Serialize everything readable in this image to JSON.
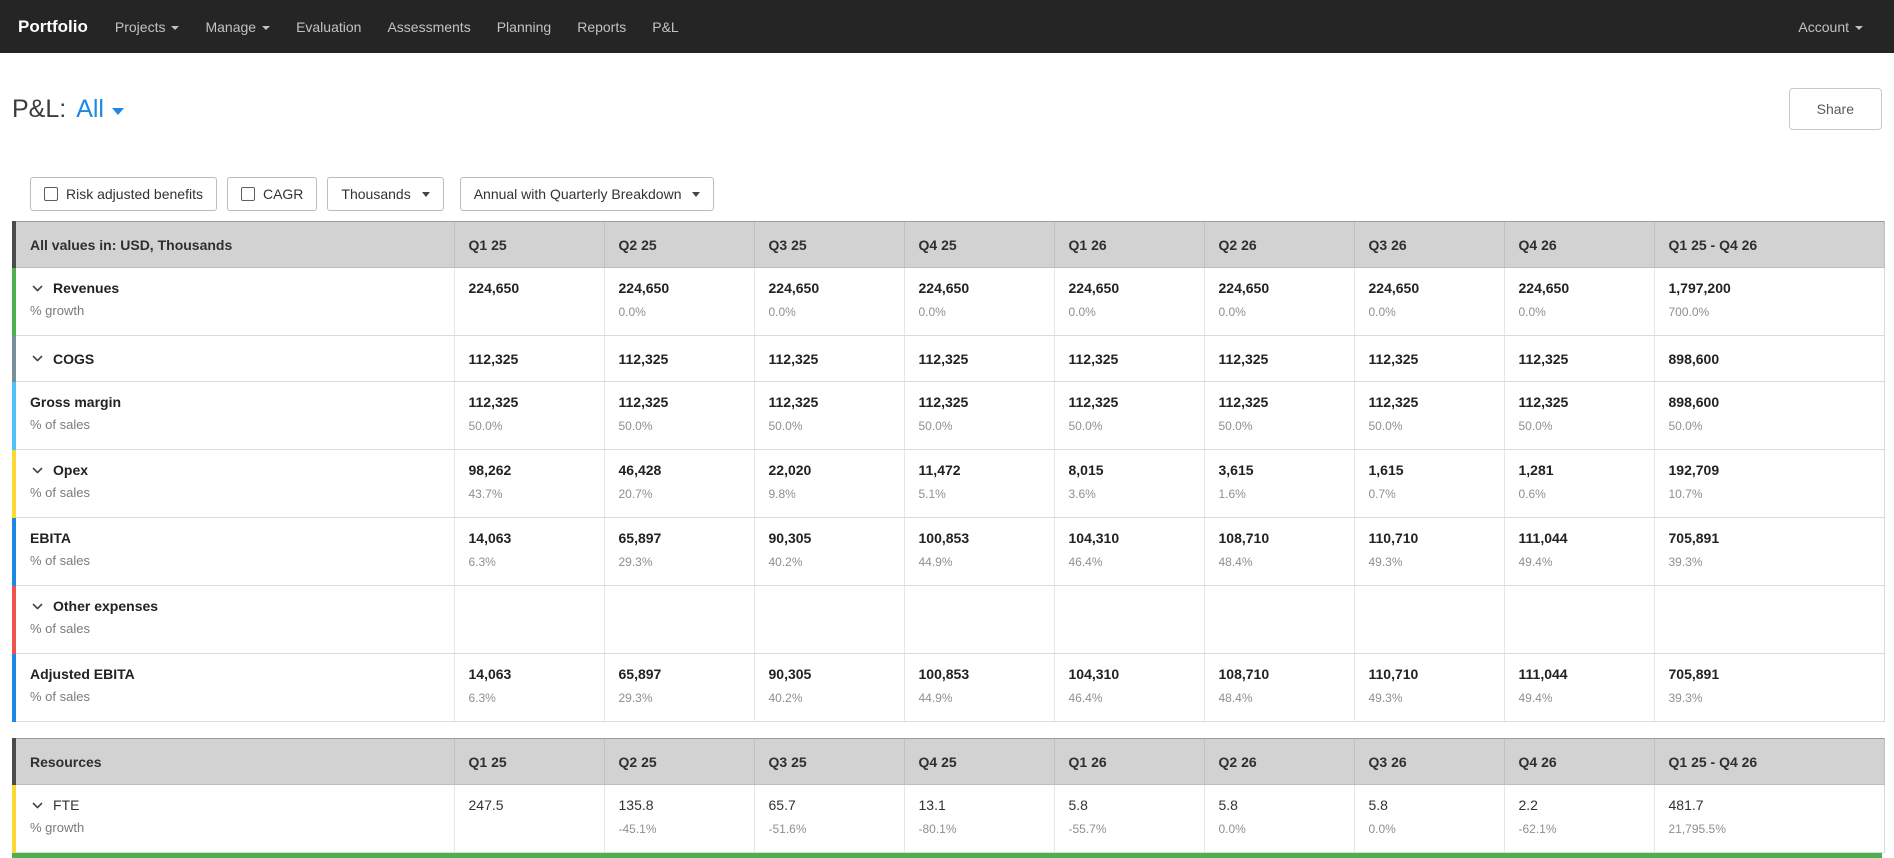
{
  "navbar": {
    "brand": "Portfolio",
    "items": [
      {
        "label": "Projects",
        "caret": true
      },
      {
        "label": "Manage",
        "caret": true
      },
      {
        "label": "Evaluation",
        "caret": false
      },
      {
        "label": "Assessments",
        "caret": false
      },
      {
        "label": "Planning",
        "caret": false
      },
      {
        "label": "Reports",
        "caret": false
      },
      {
        "label": "P&L",
        "caret": false
      }
    ],
    "account_label": "Account"
  },
  "page_header": {
    "title_prefix": "P&L:",
    "scope_selector": "All",
    "share_button": "Share"
  },
  "toolbar": {
    "risk_checkbox_label": "Risk adjusted benefits",
    "cagr_checkbox_label": "CAGR",
    "units_dropdown": "Thousands",
    "period_dropdown": "Annual with Quarterly Breakdown"
  },
  "columns": [
    "Q1 25",
    "Q2 25",
    "Q3 25",
    "Q4 25",
    "Q1 26",
    "Q2 26",
    "Q3 26",
    "Q4 26",
    "Q1 25 - Q4 26"
  ],
  "pnl_table": {
    "corner_label": "All values in: USD, Thousands",
    "rows": [
      {
        "label": "Revenues",
        "sublabel": "% growth",
        "chevron": true,
        "accent": "#4caf50",
        "bold": true,
        "values": [
          "224,650",
          "224,650",
          "224,650",
          "224,650",
          "224,650",
          "224,650",
          "224,650",
          "224,650",
          "1,797,200"
        ],
        "subvalues": [
          "",
          "0.0%",
          "0.0%",
          "0.0%",
          "0.0%",
          "0.0%",
          "0.0%",
          "0.0%",
          "700.0%"
        ]
      },
      {
        "label": "COGS",
        "sublabel": "",
        "chevron": true,
        "accent": "#78909c",
        "bold": true,
        "values": [
          "112,325",
          "112,325",
          "112,325",
          "112,325",
          "112,325",
          "112,325",
          "112,325",
          "112,325",
          "898,600"
        ],
        "subvalues": [
          "",
          "",
          "",
          "",
          "",
          "",
          "",
          "",
          ""
        ]
      },
      {
        "label": "Gross margin",
        "sublabel": "% of sales",
        "chevron": false,
        "accent": "#4fc3f7",
        "bold": true,
        "values": [
          "112,325",
          "112,325",
          "112,325",
          "112,325",
          "112,325",
          "112,325",
          "112,325",
          "112,325",
          "898,600"
        ],
        "subvalues": [
          "50.0%",
          "50.0%",
          "50.0%",
          "50.0%",
          "50.0%",
          "50.0%",
          "50.0%",
          "50.0%",
          "50.0%"
        ]
      },
      {
        "label": "Opex",
        "sublabel": "% of sales",
        "chevron": true,
        "accent": "#fdd835",
        "bold": true,
        "values": [
          "98,262",
          "46,428",
          "22,020",
          "11,472",
          "8,015",
          "3,615",
          "1,615",
          "1,281",
          "192,709"
        ],
        "subvalues": [
          "43.7%",
          "20.7%",
          "9.8%",
          "5.1%",
          "3.6%",
          "1.6%",
          "0.7%",
          "0.6%",
          "10.7%"
        ]
      },
      {
        "label": "EBITA",
        "sublabel": "% of sales",
        "chevron": false,
        "accent": "#1e88e5",
        "bold": true,
        "values": [
          "14,063",
          "65,897",
          "90,305",
          "100,853",
          "104,310",
          "108,710",
          "110,710",
          "111,044",
          "705,891"
        ],
        "subvalues": [
          "6.3%",
          "29.3%",
          "40.2%",
          "44.9%",
          "46.4%",
          "48.4%",
          "49.3%",
          "49.4%",
          "39.3%"
        ]
      },
      {
        "label": "Other expenses",
        "sublabel": "% of sales",
        "chevron": true,
        "accent": "#ef5350",
        "bold": true,
        "values": [
          "",
          "",
          "",
          "",
          "",
          "",
          "",
          "",
          ""
        ],
        "subvalues": [
          "",
          "",
          "",
          "",
          "",
          "",
          "",
          "",
          ""
        ]
      },
      {
        "label": "Adjusted EBITA",
        "sublabel": "% of sales",
        "chevron": false,
        "accent": "#1e88e5",
        "bold": true,
        "values": [
          "14,063",
          "65,897",
          "90,305",
          "100,853",
          "104,310",
          "108,710",
          "110,710",
          "111,044",
          "705,891"
        ],
        "subvalues": [
          "6.3%",
          "29.3%",
          "40.2%",
          "44.9%",
          "46.4%",
          "48.4%",
          "49.3%",
          "49.4%",
          "39.3%"
        ]
      }
    ]
  },
  "resources_table": {
    "corner_label": "Resources",
    "rows": [
      {
        "label": "FTE",
        "sublabel": "% growth",
        "chevron": true,
        "accent": "#fdd835",
        "bold": false,
        "values": [
          "247.5",
          "135.8",
          "65.7",
          "13.1",
          "5.8",
          "5.8",
          "5.8",
          "2.2",
          "481.7"
        ],
        "subvalues": [
          "",
          "-45.1%",
          "-51.6%",
          "-80.1%",
          "-55.7%",
          "0.0%",
          "0.0%",
          "-62.1%",
          "21,795.5%"
        ]
      }
    ]
  },
  "next_row_peek_accent": "#4caf50"
}
